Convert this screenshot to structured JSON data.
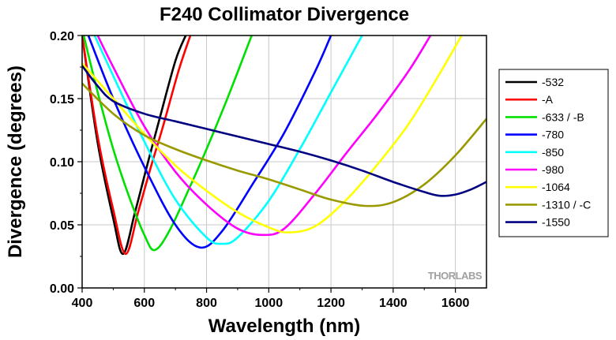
{
  "chart_data": {
    "type": "line",
    "title": "F240 Collimator Divergence",
    "xlabel": "Wavelength (nm)",
    "ylabel": "Divergence (degrees)",
    "xlim": [
      400,
      1700
    ],
    "ylim": [
      0,
      0.2
    ],
    "xticks": [
      400,
      600,
      800,
      1000,
      1200,
      1400,
      1600
    ],
    "xtick_labels": [
      "400",
      "600",
      "800",
      "1000",
      "1200",
      "1400",
      "1600"
    ],
    "yticks": [
      0.0,
      0.05,
      0.1,
      0.15,
      0.2
    ],
    "ytick_labels": [
      "0.00",
      "0.05",
      "0.10",
      "0.15",
      "0.20"
    ],
    "grid": true,
    "legend_position": "right",
    "watermark": "THORLABS",
    "series": [
      {
        "name": "-532",
        "color": "#000000",
        "x": [
          400,
          450,
          500,
          532,
          570,
          610,
          650,
          700,
          733
        ],
        "y": [
          0.2,
          0.115,
          0.055,
          0.027,
          0.06,
          0.098,
          0.135,
          0.18,
          0.2
        ]
      },
      {
        "name": "-A",
        "color": "#ff0000",
        "x": [
          400,
          450,
          500,
          540,
          580,
          620,
          660,
          710,
          748
        ],
        "y": [
          0.2,
          0.12,
          0.062,
          0.027,
          0.06,
          0.095,
          0.128,
          0.172,
          0.2
        ]
      },
      {
        "name": "-633 / -B",
        "color": "#00e000",
        "x": [
          405,
          450,
          500,
          550,
          600,
          633,
          680,
          750,
          800,
          870,
          945
        ],
        "y": [
          0.2,
          0.155,
          0.11,
          0.073,
          0.042,
          0.03,
          0.045,
          0.082,
          0.11,
          0.152,
          0.2
        ]
      },
      {
        "name": "-780",
        "color": "#0000ff",
        "x": [
          420,
          500,
          600,
          700,
          780,
          850,
          950,
          1050,
          1150,
          1200
        ],
        "y": [
          0.2,
          0.15,
          0.096,
          0.05,
          0.032,
          0.045,
          0.083,
          0.123,
          0.172,
          0.2
        ]
      },
      {
        "name": "-850",
        "color": "#00ffff",
        "x": [
          440,
          500,
          600,
          700,
          800,
          850,
          900,
          1000,
          1100,
          1200,
          1300
        ],
        "y": [
          0.2,
          0.168,
          0.116,
          0.07,
          0.04,
          0.035,
          0.04,
          0.069,
          0.11,
          0.155,
          0.2
        ]
      },
      {
        "name": "-980",
        "color": "#ff00ff",
        "x": [
          450,
          500,
          600,
          700,
          800,
          900,
          980,
          1050,
          1150,
          1250,
          1350,
          1450,
          1520
        ],
        "y": [
          0.2,
          0.175,
          0.128,
          0.092,
          0.066,
          0.047,
          0.042,
          0.047,
          0.075,
          0.107,
          0.138,
          0.172,
          0.2
        ]
      },
      {
        "name": "-1064",
        "color": "#ffff00",
        "x": [
          400,
          500,
          600,
          700,
          800,
          900,
          1000,
          1064,
          1150,
          1250,
          1350,
          1450,
          1550,
          1620
        ],
        "y": [
          0.178,
          0.15,
          0.122,
          0.097,
          0.077,
          0.06,
          0.048,
          0.044,
          0.049,
          0.07,
          0.098,
          0.13,
          0.17,
          0.2
        ]
      },
      {
        "name": "-1310 / -C",
        "color": "#999900",
        "x": [
          400,
          500,
          600,
          700,
          800,
          900,
          1000,
          1100,
          1200,
          1310,
          1400,
          1500,
          1600,
          1700
        ],
        "y": [
          0.162,
          0.138,
          0.121,
          0.11,
          0.101,
          0.093,
          0.086,
          0.078,
          0.07,
          0.065,
          0.068,
          0.082,
          0.105,
          0.134
        ]
      },
      {
        "name": "-1550",
        "color": "#000080",
        "x": [
          400,
          450,
          500,
          600,
          700,
          800,
          900,
          1000,
          1100,
          1200,
          1300,
          1400,
          1500,
          1550,
          1600,
          1650,
          1700
        ],
        "y": [
          0.176,
          0.16,
          0.148,
          0.138,
          0.132,
          0.126,
          0.12,
          0.114,
          0.108,
          0.101,
          0.093,
          0.084,
          0.076,
          0.073,
          0.074,
          0.078,
          0.084
        ]
      }
    ]
  }
}
